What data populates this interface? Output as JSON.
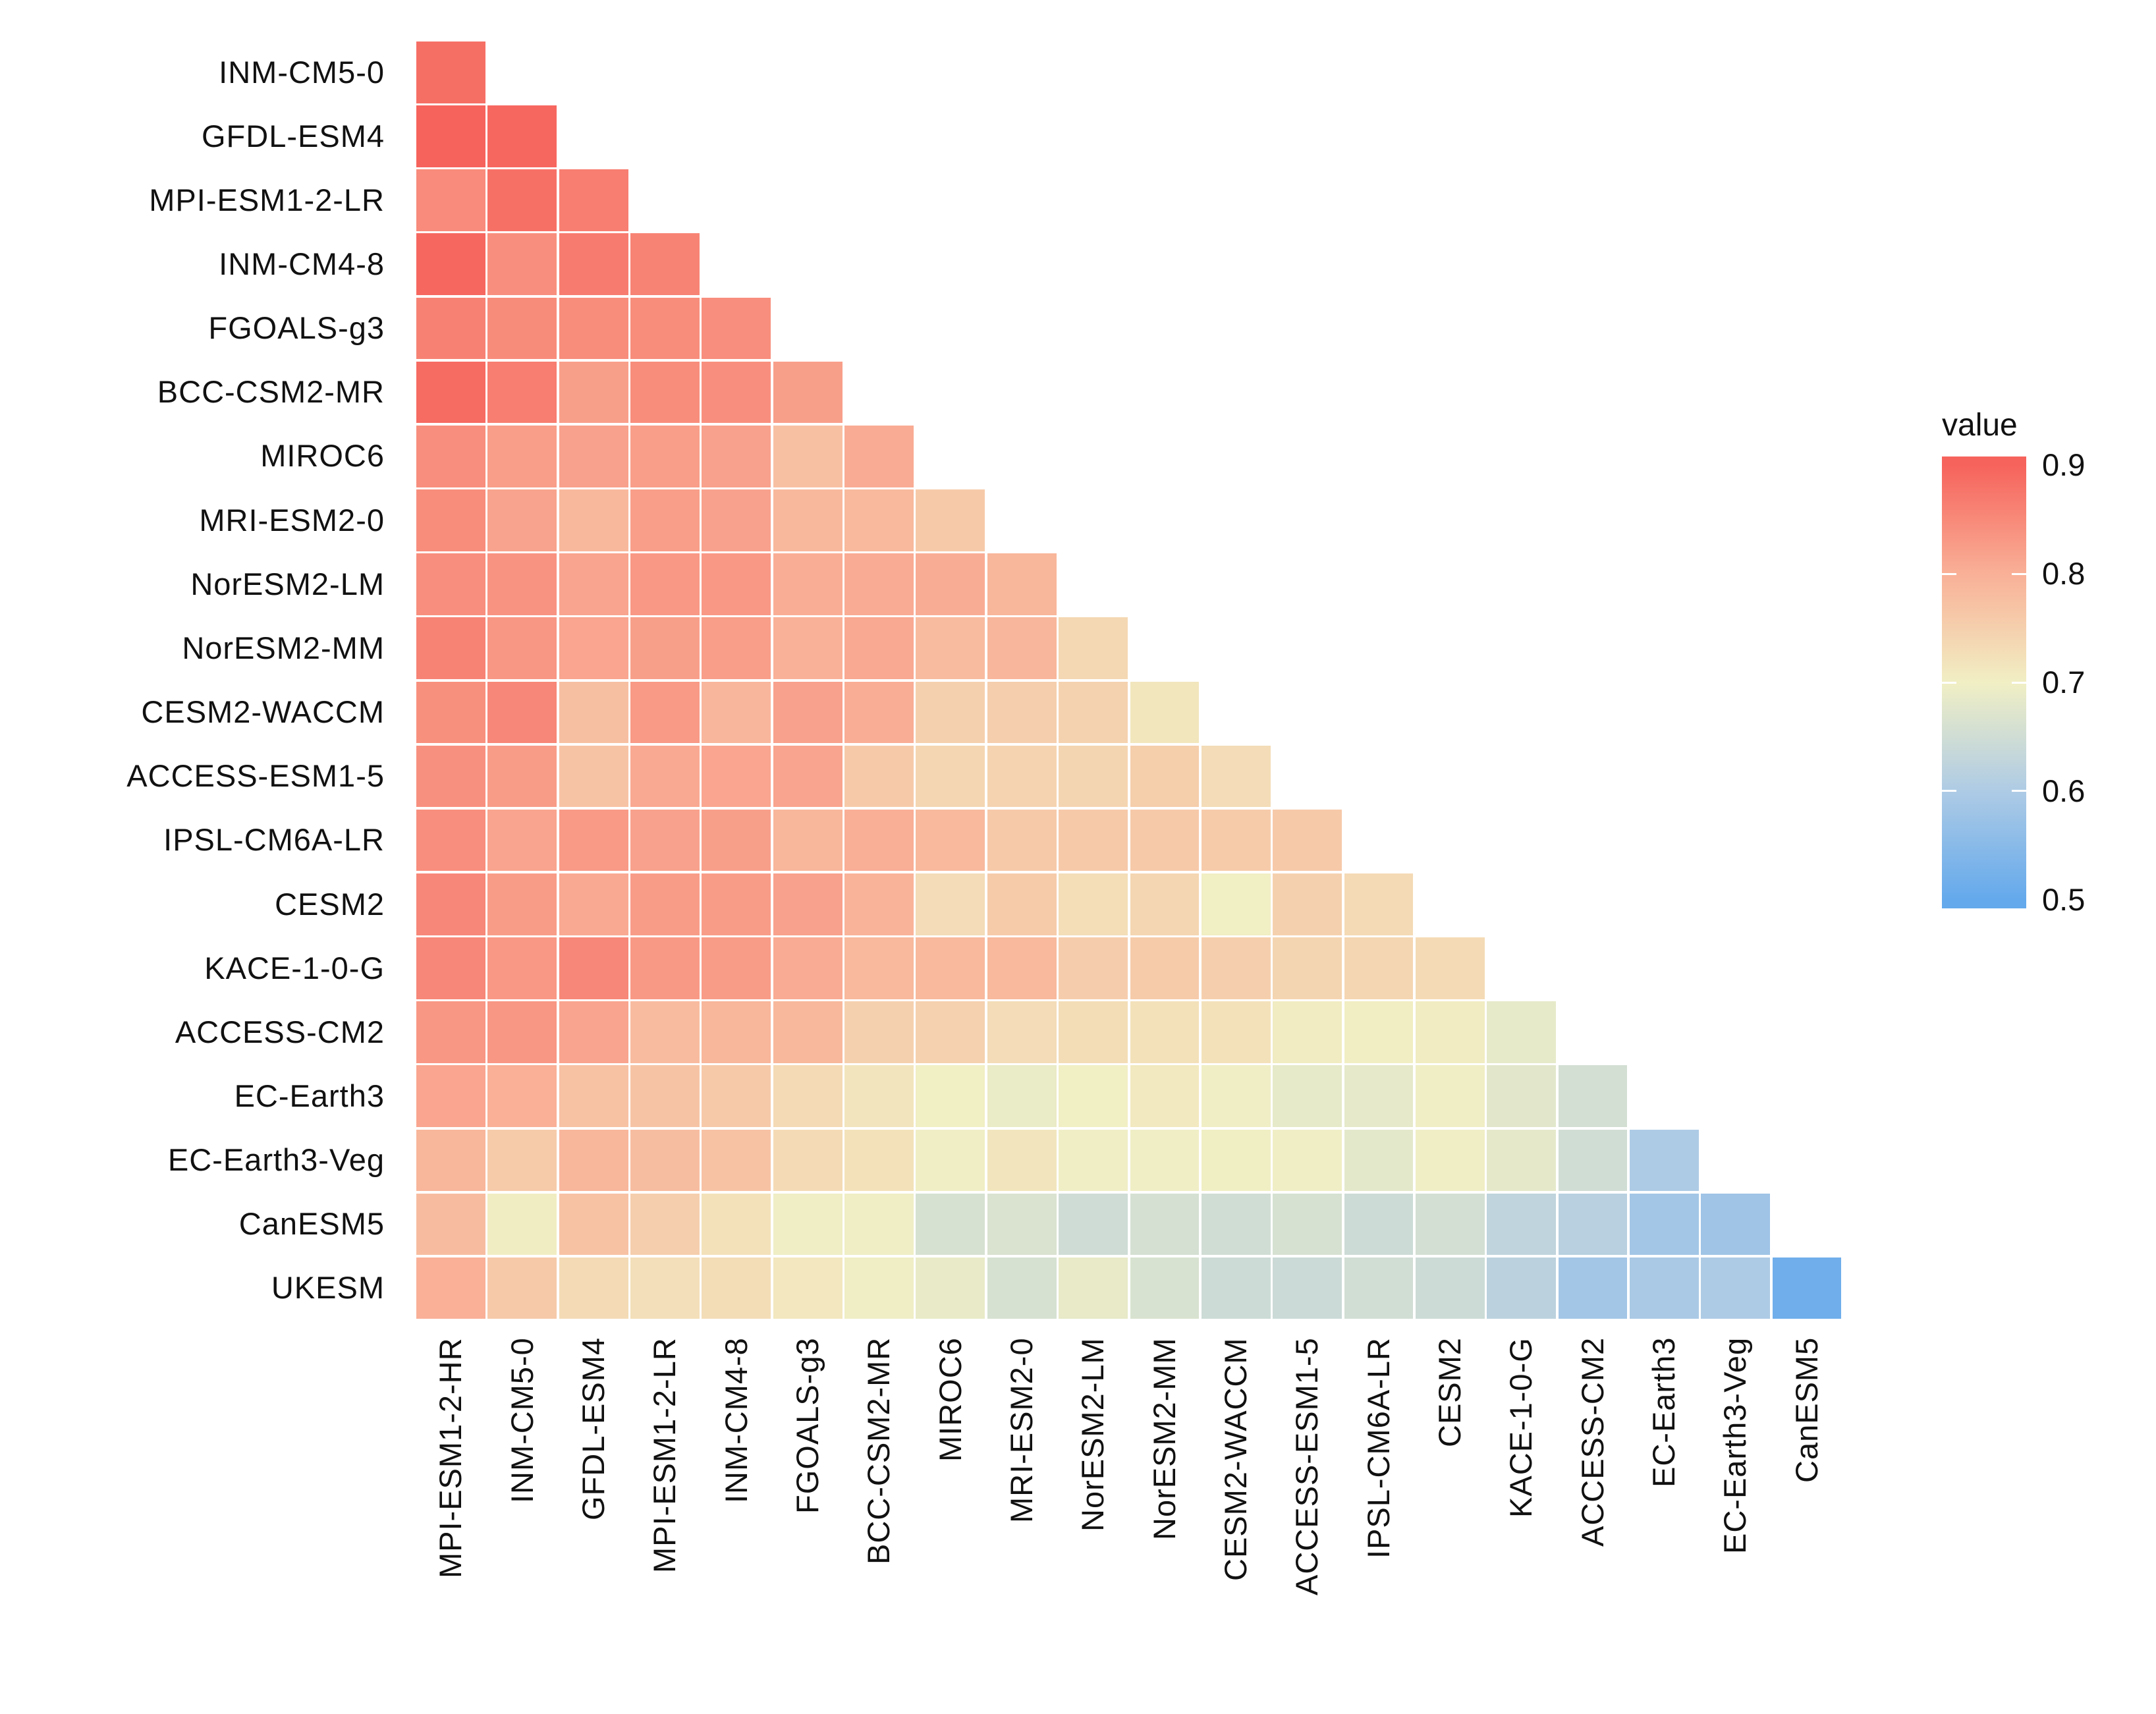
{
  "chart_data": {
    "type": "heatmap",
    "title": "",
    "description": "Lower-triangular pairwise value matrix between CMIP6 climate models",
    "grid": false,
    "legend_position": "right",
    "legend": {
      "title": "value",
      "tick_labels": [
        "0.9",
        "0.8",
        "0.7",
        "0.6",
        "0.5"
      ],
      "tick_values": [
        0.9,
        0.8,
        0.7,
        0.6,
        0.5
      ],
      "bar_min": 0.492,
      "bar_max": 0.908
    },
    "colormap": [
      {
        "value": 0.5,
        "color": "#64A9EC"
      },
      {
        "value": 0.6,
        "color": "#AECBE5"
      },
      {
        "value": 0.7,
        "color": "#F1EFC4"
      },
      {
        "value": 0.8,
        "color": "#F9B097"
      },
      {
        "value": 0.9,
        "color": "#F6635C"
      }
    ],
    "x_categories": [
      "MPI-ESM1-2-HR",
      "INM-CM5-0",
      "GFDL-ESM4",
      "MPI-ESM1-2-LR",
      "INM-CM4-8",
      "FGOALS-g3",
      "BCC-CSM2-MR",
      "MIROC6",
      "MRI-ESM2-0",
      "NorESM2-LM",
      "NorESM2-MM",
      "CESM2-WACCM",
      "ACCESS-ESM1-5",
      "IPSL-CM6A-LR",
      "CESM2",
      "KACE-1-0-G",
      "ACCESS-CM2",
      "EC-Earth3",
      "EC-Earth3-Veg",
      "CanESM5"
    ],
    "y_categories": [
      "INM-CM5-0",
      "GFDL-ESM4",
      "MPI-ESM1-2-LR",
      "INM-CM4-8",
      "FGOALS-g3",
      "BCC-CSM2-MR",
      "MIROC6",
      "MRI-ESM2-0",
      "NorESM2-LM",
      "NorESM2-MM",
      "CESM2-WACCM",
      "ACCESS-ESM1-5",
      "IPSL-CM6A-LR",
      "CESM2",
      "KACE-1-0-G",
      "ACCESS-CM2",
      "EC-Earth3",
      "EC-Earth3-Veg",
      "CanESM5",
      "UKESM"
    ],
    "values": [
      [
        0.885
      ],
      [
        0.9,
        0.895
      ],
      [
        0.848,
        0.883,
        0.865
      ],
      [
        0.895,
        0.843,
        0.868,
        0.858
      ],
      [
        0.86,
        0.847,
        0.846,
        0.846,
        0.844
      ],
      [
        0.89,
        0.865,
        0.822,
        0.846,
        0.843,
        0.822
      ],
      [
        0.844,
        0.823,
        0.819,
        0.823,
        0.819,
        0.775,
        0.807
      ],
      [
        0.846,
        0.817,
        0.788,
        0.823,
        0.819,
        0.788,
        0.786,
        0.759
      ],
      [
        0.844,
        0.838,
        0.816,
        0.831,
        0.831,
        0.804,
        0.807,
        0.805,
        0.791
      ],
      [
        0.858,
        0.832,
        0.814,
        0.822,
        0.823,
        0.798,
        0.811,
        0.783,
        0.79,
        0.737
      ],
      [
        0.842,
        0.853,
        0.776,
        0.828,
        0.79,
        0.819,
        0.804,
        0.749,
        0.752,
        0.746,
        0.715
      ],
      [
        0.841,
        0.826,
        0.77,
        0.81,
        0.814,
        0.816,
        0.759,
        0.74,
        0.744,
        0.742,
        0.753,
        0.73
      ],
      [
        0.844,
        0.816,
        0.828,
        0.819,
        0.822,
        0.791,
        0.802,
        0.786,
        0.761,
        0.761,
        0.761,
        0.757,
        0.761
      ],
      [
        0.853,
        0.826,
        0.81,
        0.826,
        0.826,
        0.819,
        0.796,
        0.73,
        0.757,
        0.727,
        0.739,
        0.7,
        0.749,
        0.734
      ],
      [
        0.853,
        0.831,
        0.853,
        0.83,
        0.827,
        0.806,
        0.786,
        0.786,
        0.786,
        0.754,
        0.757,
        0.751,
        0.742,
        0.739,
        0.732
      ],
      [
        0.832,
        0.832,
        0.816,
        0.783,
        0.791,
        0.788,
        0.749,
        0.747,
        0.73,
        0.729,
        0.722,
        0.722,
        0.705,
        0.702,
        0.705,
        0.685
      ],
      [
        0.814,
        0.8,
        0.773,
        0.768,
        0.761,
        0.734,
        0.716,
        0.7,
        0.69,
        0.7,
        0.71,
        0.698,
        0.685,
        0.683,
        0.698,
        0.678,
        0.655
      ],
      [
        0.791,
        0.757,
        0.791,
        0.78,
        0.771,
        0.732,
        0.722,
        0.698,
        0.716,
        0.698,
        0.698,
        0.699,
        0.698,
        0.68,
        0.698,
        0.682,
        0.65,
        0.6
      ],
      [
        0.781,
        0.703,
        0.771,
        0.752,
        0.722,
        0.697,
        0.697,
        0.66,
        0.665,
        0.648,
        0.658,
        0.65,
        0.66,
        0.645,
        0.656,
        0.625,
        0.615,
        0.585,
        0.58
      ],
      [
        0.8,
        0.761,
        0.732,
        0.725,
        0.729,
        0.712,
        0.697,
        0.688,
        0.66,
        0.687,
        0.663,
        0.645,
        0.643,
        0.652,
        0.645,
        0.62,
        0.585,
        0.595,
        0.6,
        0.515
      ]
    ]
  }
}
